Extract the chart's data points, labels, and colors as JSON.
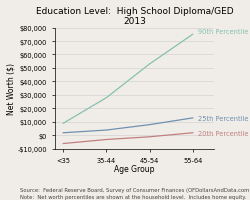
{
  "title": "Education Level:  High School Diploma/GED\n2013",
  "xlabel": "Age Group",
  "ylabel": "Net Worth ($)",
  "age_groups": [
    "<35",
    "35-44",
    "45-54",
    "55-64"
  ],
  "series": [
    {
      "label": "90th Percentile",
      "values": [
        9000,
        28000,
        53000,
        75000
      ],
      "color": "#88c0b0",
      "labelpos": [
        3,
        75000
      ]
    },
    {
      "label": "25th Percentile",
      "values": [
        2000,
        4000,
        8000,
        13000
      ],
      "color": "#7090b0",
      "labelpos": [
        3,
        13000
      ]
    },
    {
      "label": "20th Percentile",
      "values": [
        -6000,
        -3000,
        -1000,
        2000
      ],
      "color": "#c08080",
      "labelpos": [
        3,
        2000
      ]
    }
  ],
  "ylim": [
    -10000,
    80000
  ],
  "yticks": [
    -10000,
    0,
    10000,
    20000,
    30000,
    40000,
    50000,
    60000,
    70000,
    80000
  ],
  "source_text": "Source:  Federal Reserve Board, Survey of Consumer Finances (OFDollarsAndData.com)\nNote:  Net worth percentiles are shown at the household level.  Includes home equity.",
  "bg_color": "#f0ede8",
  "title_fontsize": 6.5,
  "axis_label_fontsize": 5.5,
  "tick_fontsize": 4.8,
  "series_label_fontsize": 4.8,
  "source_fontsize": 3.8
}
